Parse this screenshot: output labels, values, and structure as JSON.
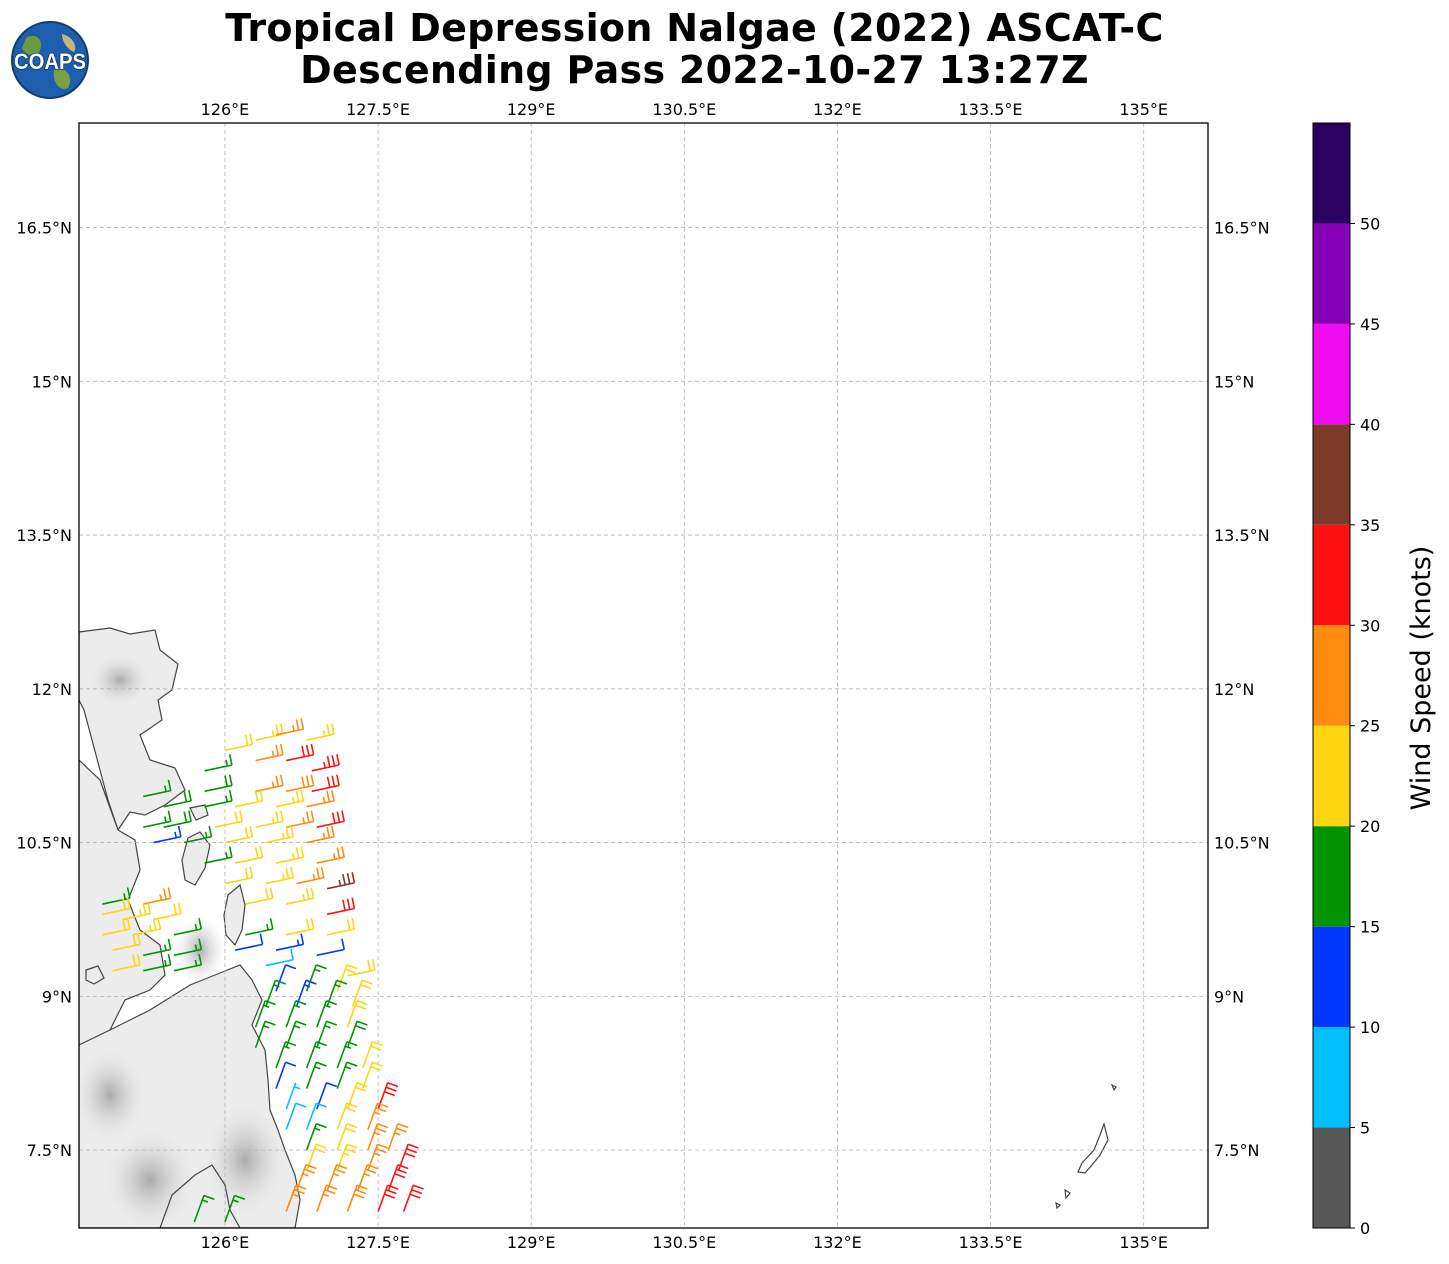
{
  "title": {
    "line1": "Tropical Depression Nalgae (2022) ASCAT-C",
    "line2": "Descending Pass 2022-10-27 13:27Z"
  },
  "logo": {
    "text": "COAPS",
    "icon": "globe-icon"
  },
  "map": {
    "lon_range": [
      124.57,
      135.63
    ],
    "lat_range": [
      6.74,
      17.52
    ],
    "lon_ticks": [
      "126°E",
      "127.5°E",
      "129°E",
      "130.5°E",
      "132°E",
      "133.5°E",
      "135°E"
    ],
    "lon_tick_values": [
      126,
      127.5,
      129,
      130.5,
      132,
      133.5,
      135
    ],
    "lat_ticks": [
      "16.5°N",
      "15°N",
      "13.5°N",
      "12°N",
      "10.5°N",
      "9°N",
      "7.5°N"
    ],
    "lat_tick_values": [
      16.5,
      15,
      13.5,
      12,
      10.5,
      9,
      7.5
    ],
    "grid": true,
    "land_color": "#e8e8e8",
    "coast_color": "#444444"
  },
  "colorbar": {
    "label": "Wind Speed (knots)",
    "tick_labels": [
      "0",
      "5",
      "10",
      "15",
      "20",
      "25",
      "30",
      "35",
      "40",
      "45",
      "50"
    ],
    "bins": [
      {
        "min": 0,
        "max": 5,
        "color": "#575757"
      },
      {
        "min": 5,
        "max": 10,
        "color": "#00bfff"
      },
      {
        "min": 10,
        "max": 15,
        "color": "#0036ff"
      },
      {
        "min": 15,
        "max": 20,
        "color": "#009400"
      },
      {
        "min": 20,
        "max": 25,
        "color": "#ffd511"
      },
      {
        "min": 25,
        "max": 30,
        "color": "#ff8b0e"
      },
      {
        "min": 30,
        "max": 35,
        "color": "#ff1111"
      },
      {
        "min": 35,
        "max": 40,
        "color": "#7d3b2a"
      },
      {
        "min": 40,
        "max": 45,
        "color": "#f00bf0"
      },
      {
        "min": 45,
        "max": 50,
        "color": "#8600b7"
      },
      {
        "min": 50,
        "max": 55,
        "color": "#2c0061"
      }
    ]
  },
  "chart_data": {
    "type": "wind-barbs",
    "wind_speed_range_knots": [
      0,
      55
    ],
    "barbs": [
      {
        "lat": 11.4,
        "lon": 126.0,
        "speed": 22
      },
      {
        "lat": 11.5,
        "lon": 126.3,
        "speed": 23
      },
      {
        "lat": 11.55,
        "lon": 126.5,
        "speed": 27
      },
      {
        "lat": 11.5,
        "lon": 126.8,
        "speed": 23
      },
      {
        "lat": 11.2,
        "lon": 125.8,
        "speed": 17
      },
      {
        "lat": 11.3,
        "lon": 126.3,
        "speed": 27
      },
      {
        "lat": 11.3,
        "lon": 126.6,
        "speed": 32
      },
      {
        "lat": 11.2,
        "lon": 126.85,
        "speed": 33
      },
      {
        "lat": 11.0,
        "lon": 125.8,
        "speed": 18
      },
      {
        "lat": 11.0,
        "lon": 126.3,
        "speed": 27
      },
      {
        "lat": 11.0,
        "lon": 126.6,
        "speed": 29
      },
      {
        "lat": 11.0,
        "lon": 126.85,
        "speed": 32
      },
      {
        "lat": 10.95,
        "lon": 125.2,
        "speed": 17
      },
      {
        "lat": 10.85,
        "lon": 125.4,
        "speed": 18
      },
      {
        "lat": 10.85,
        "lon": 125.8,
        "speed": 17
      },
      {
        "lat": 10.85,
        "lon": 126.1,
        "speed": 22
      },
      {
        "lat": 10.85,
        "lon": 126.5,
        "speed": 23
      },
      {
        "lat": 10.85,
        "lon": 126.8,
        "speed": 27
      },
      {
        "lat": 10.65,
        "lon": 125.2,
        "speed": 17
      },
      {
        "lat": 10.65,
        "lon": 125.4,
        "speed": 18
      },
      {
        "lat": 10.65,
        "lon": 125.9,
        "speed": 22
      },
      {
        "lat": 10.65,
        "lon": 126.3,
        "speed": 23
      },
      {
        "lat": 10.65,
        "lon": 126.6,
        "speed": 27
      },
      {
        "lat": 10.65,
        "lon": 126.9,
        "speed": 31
      },
      {
        "lat": 10.5,
        "lon": 125.3,
        "speed": 13
      },
      {
        "lat": 10.5,
        "lon": 125.6,
        "speed": 17
      },
      {
        "lat": 10.5,
        "lon": 126.0,
        "speed": 22
      },
      {
        "lat": 10.5,
        "lon": 126.4,
        "speed": 23
      },
      {
        "lat": 10.5,
        "lon": 126.8,
        "speed": 27
      },
      {
        "lat": 10.3,
        "lon": 125.8,
        "speed": 17
      },
      {
        "lat": 10.3,
        "lon": 126.1,
        "speed": 22
      },
      {
        "lat": 10.3,
        "lon": 126.5,
        "speed": 23
      },
      {
        "lat": 10.3,
        "lon": 126.9,
        "speed": 26
      },
      {
        "lat": 10.1,
        "lon": 126.0,
        "speed": 22
      },
      {
        "lat": 10.1,
        "lon": 126.4,
        "speed": 23
      },
      {
        "lat": 10.1,
        "lon": 126.7,
        "speed": 27
      },
      {
        "lat": 10.05,
        "lon": 127.0,
        "speed": 36
      },
      {
        "lat": 9.9,
        "lon": 124.8,
        "speed": 17
      },
      {
        "lat": 9.9,
        "lon": 125.2,
        "speed": 26
      },
      {
        "lat": 9.9,
        "lon": 126.2,
        "speed": 22
      },
      {
        "lat": 9.9,
        "lon": 126.6,
        "speed": 23
      },
      {
        "lat": 9.8,
        "lon": 124.8,
        "speed": 22
      },
      {
        "lat": 9.75,
        "lon": 125.0,
        "speed": 23
      },
      {
        "lat": 9.75,
        "lon": 125.3,
        "speed": 22
      },
      {
        "lat": 9.8,
        "lon": 127.0,
        "speed": 31
      },
      {
        "lat": 9.6,
        "lon": 124.8,
        "speed": 22
      },
      {
        "lat": 9.6,
        "lon": 125.1,
        "speed": 23
      },
      {
        "lat": 9.6,
        "lon": 125.5,
        "speed": 17
      },
      {
        "lat": 9.6,
        "lon": 126.2,
        "speed": 16
      },
      {
        "lat": 9.6,
        "lon": 126.6,
        "speed": 22
      },
      {
        "lat": 9.6,
        "lon": 127.0,
        "speed": 22
      },
      {
        "lat": 9.45,
        "lon": 124.9,
        "speed": 22
      },
      {
        "lat": 9.4,
        "lon": 125.2,
        "speed": 17
      },
      {
        "lat": 9.4,
        "lon": 125.5,
        "speed": 17
      },
      {
        "lat": 9.45,
        "lon": 126.1,
        "speed": 12
      },
      {
        "lat": 9.45,
        "lon": 126.5,
        "speed": 13
      },
      {
        "lat": 9.4,
        "lon": 126.9,
        "speed": 12
      },
      {
        "lat": 9.25,
        "lon": 124.9,
        "speed": 22
      },
      {
        "lat": 9.25,
        "lon": 125.2,
        "speed": 17
      },
      {
        "lat": 9.25,
        "lon": 125.5,
        "speed": 17
      },
      {
        "lat": 9.3,
        "lon": 126.4,
        "speed": 8
      },
      {
        "lat": 9.2,
        "lon": 127.2,
        "speed": 22
      },
      {
        "lat": 9.05,
        "lon": 126.5,
        "speed": 12
      },
      {
        "lat": 9.05,
        "lon": 126.8,
        "speed": 17
      },
      {
        "lat": 9.05,
        "lon": 127.1,
        "speed": 22
      },
      {
        "lat": 8.9,
        "lon": 126.4,
        "speed": 17
      },
      {
        "lat": 8.9,
        "lon": 126.7,
        "speed": 13
      },
      {
        "lat": 8.9,
        "lon": 127.0,
        "speed": 17
      },
      {
        "lat": 8.9,
        "lon": 127.25,
        "speed": 22
      },
      {
        "lat": 8.7,
        "lon": 126.3,
        "speed": 17
      },
      {
        "lat": 8.7,
        "lon": 126.6,
        "speed": 16
      },
      {
        "lat": 8.7,
        "lon": 126.9,
        "speed": 17
      },
      {
        "lat": 8.7,
        "lon": 127.2,
        "speed": 22
      },
      {
        "lat": 8.5,
        "lon": 126.3,
        "speed": 17
      },
      {
        "lat": 8.5,
        "lon": 126.6,
        "speed": 17
      },
      {
        "lat": 8.5,
        "lon": 126.9,
        "speed": 17
      },
      {
        "lat": 8.5,
        "lon": 127.2,
        "speed": 18
      },
      {
        "lat": 8.3,
        "lon": 126.5,
        "speed": 17
      },
      {
        "lat": 8.3,
        "lon": 126.8,
        "speed": 16
      },
      {
        "lat": 8.3,
        "lon": 127.1,
        "speed": 17
      },
      {
        "lat": 8.3,
        "lon": 127.35,
        "speed": 22
      },
      {
        "lat": 8.1,
        "lon": 126.5,
        "speed": 12
      },
      {
        "lat": 8.1,
        "lon": 126.8,
        "speed": 17
      },
      {
        "lat": 8.1,
        "lon": 127.1,
        "speed": 17
      },
      {
        "lat": 8.1,
        "lon": 127.35,
        "speed": 22
      },
      {
        "lat": 7.9,
        "lon": 126.6,
        "speed": 7
      },
      {
        "lat": 7.9,
        "lon": 126.9,
        "speed": 12
      },
      {
        "lat": 7.9,
        "lon": 127.2,
        "speed": 22
      },
      {
        "lat": 7.9,
        "lon": 127.5,
        "speed": 31
      },
      {
        "lat": 7.7,
        "lon": 126.6,
        "speed": 8
      },
      {
        "lat": 7.7,
        "lon": 126.8,
        "speed": 8
      },
      {
        "lat": 7.7,
        "lon": 127.1,
        "speed": 22
      },
      {
        "lat": 7.7,
        "lon": 127.4,
        "speed": 27
      },
      {
        "lat": 7.5,
        "lon": 126.8,
        "speed": 17
      },
      {
        "lat": 7.5,
        "lon": 127.1,
        "speed": 22
      },
      {
        "lat": 7.5,
        "lon": 127.4,
        "speed": 27
      },
      {
        "lat": 7.5,
        "lon": 127.6,
        "speed": 27
      },
      {
        "lat": 7.3,
        "lon": 126.8,
        "speed": 22
      },
      {
        "lat": 7.3,
        "lon": 127.1,
        "speed": 23
      },
      {
        "lat": 7.3,
        "lon": 127.4,
        "speed": 27
      },
      {
        "lat": 7.3,
        "lon": 127.7,
        "speed": 31
      },
      {
        "lat": 7.1,
        "lon": 126.7,
        "speed": 27
      },
      {
        "lat": 7.1,
        "lon": 127.0,
        "speed": 27
      },
      {
        "lat": 7.1,
        "lon": 127.3,
        "speed": 27
      },
      {
        "lat": 7.1,
        "lon": 127.6,
        "speed": 31
      },
      {
        "lat": 6.9,
        "lon": 126.6,
        "speed": 27
      },
      {
        "lat": 6.9,
        "lon": 126.9,
        "speed": 27
      },
      {
        "lat": 6.9,
        "lon": 127.2,
        "speed": 28
      },
      {
        "lat": 6.9,
        "lon": 127.5,
        "speed": 31
      },
      {
        "lat": 6.9,
        "lon": 127.75,
        "speed": 31
      },
      {
        "lat": 6.8,
        "lon": 125.7,
        "speed": 17
      },
      {
        "lat": 6.8,
        "lon": 126.0,
        "speed": 17
      }
    ]
  }
}
